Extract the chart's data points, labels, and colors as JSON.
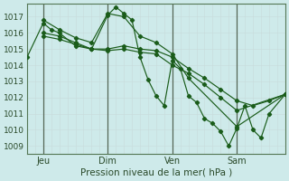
{
  "title": "",
  "xlabel": "Pression niveau de la mer( hPa )",
  "ylabel": "",
  "bg_color": "#ceeaea",
  "grid_color": "#b8d8d8",
  "line_color": "#1a5c1a",
  "ylim": [
    1008.5,
    1017.8
  ],
  "xlim": [
    0,
    96
  ],
  "xticks": [
    6,
    30,
    54,
    78
  ],
  "xtick_labels": [
    "Jeu",
    "Dim",
    "Ven",
    "Sam"
  ],
  "yticks": [
    1009,
    1010,
    1011,
    1012,
    1013,
    1014,
    1015,
    1016,
    1017
  ],
  "vlines": [
    6,
    30,
    54,
    78
  ],
  "series": [
    {
      "x": [
        0,
        6,
        9,
        12,
        18,
        24,
        30,
        33,
        36,
        39,
        42,
        45,
        48,
        51,
        54,
        57,
        60,
        63,
        66,
        69,
        72,
        75,
        78,
        81,
        84,
        87,
        90,
        96
      ],
      "y": [
        1014.5,
        1016.6,
        1016.2,
        1016.0,
        1015.2,
        1015.0,
        1017.1,
        1017.6,
        1017.2,
        1016.8,
        1014.5,
        1013.1,
        1012.1,
        1011.5,
        1014.3,
        1013.8,
        1012.1,
        1011.7,
        1010.7,
        1010.4,
        1009.9,
        1009.0,
        1010.1,
        1011.5,
        1010.0,
        1009.5,
        1011.0,
        1012.2
      ]
    },
    {
      "x": [
        6,
        12,
        18,
        24,
        30,
        36,
        42,
        48,
        54,
        60,
        66,
        72,
        78,
        84,
        90,
        96
      ],
      "y": [
        1016.0,
        1015.8,
        1015.4,
        1015.0,
        1015.0,
        1015.2,
        1015.0,
        1014.9,
        1014.5,
        1013.8,
        1013.2,
        1012.5,
        1011.8,
        1011.5,
        1011.8,
        1012.2
      ]
    },
    {
      "x": [
        6,
        12,
        18,
        24,
        30,
        36,
        42,
        48,
        54,
        60,
        66,
        72,
        78,
        96
      ],
      "y": [
        1015.8,
        1015.6,
        1015.3,
        1015.0,
        1014.9,
        1015.0,
        1014.8,
        1014.7,
        1014.0,
        1013.5,
        1012.8,
        1012.0,
        1011.2,
        1012.2
      ]
    },
    {
      "x": [
        6,
        12,
        18,
        24,
        30,
        36,
        42,
        48,
        54,
        60,
        78,
        96
      ],
      "y": [
        1016.8,
        1016.2,
        1015.7,
        1015.4,
        1017.2,
        1017.0,
        1015.8,
        1015.4,
        1014.7,
        1013.2,
        1010.2,
        1012.2
      ]
    }
  ]
}
